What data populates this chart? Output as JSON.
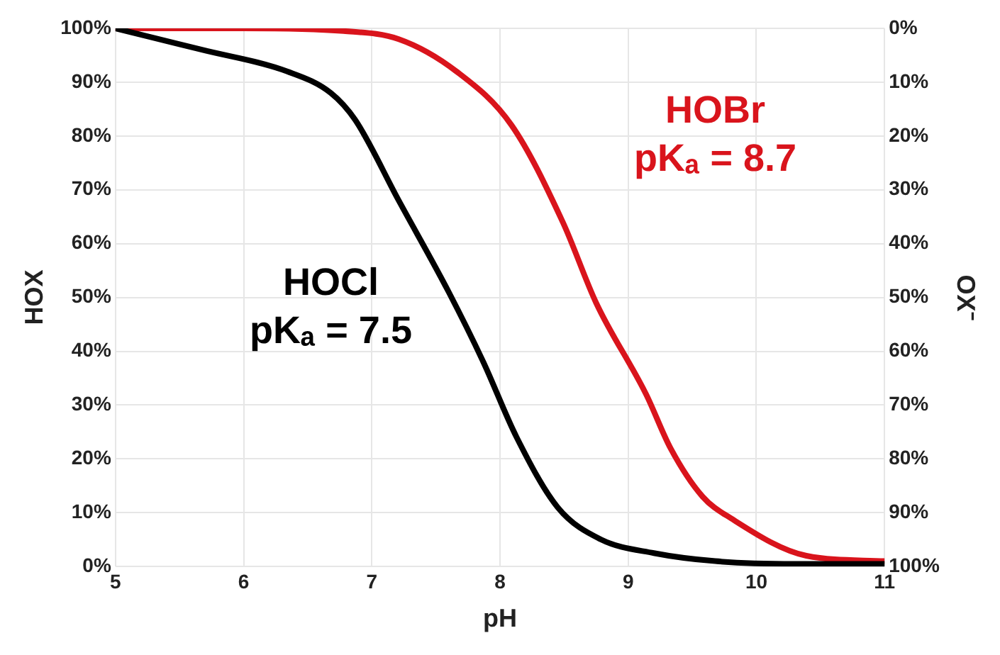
{
  "chart_data": {
    "type": "line",
    "xlabel": "pH",
    "ylabel": "HOX",
    "y2label": "OX⁻",
    "xlim": [
      5,
      11
    ],
    "xticks": [
      5,
      6,
      7,
      8,
      9,
      10,
      11
    ],
    "ylim": [
      0,
      100
    ],
    "yticks": [
      {
        "value": 0,
        "label": "0%"
      },
      {
        "value": 10,
        "label": "10%"
      },
      {
        "value": 20,
        "label": "20%"
      },
      {
        "value": 30,
        "label": "30%"
      },
      {
        "value": 40,
        "label": "40%"
      },
      {
        "value": 50,
        "label": "50%"
      },
      {
        "value": 60,
        "label": "60%"
      },
      {
        "value": 70,
        "label": "70%"
      },
      {
        "value": 80,
        "label": "80%"
      },
      {
        "value": 90,
        "label": "90%"
      },
      {
        "value": 100,
        "label": "100%"
      }
    ],
    "y2lim": [
      100,
      0
    ],
    "y2ticks": [
      {
        "value": 0,
        "label": "0%"
      },
      {
        "value": 10,
        "label": "10%"
      },
      {
        "value": 20,
        "label": "20%"
      },
      {
        "value": 30,
        "label": "30%"
      },
      {
        "value": 40,
        "label": "40%"
      },
      {
        "value": 50,
        "label": "50%"
      },
      {
        "value": 60,
        "label": "60%"
      },
      {
        "value": 70,
        "label": "70%"
      },
      {
        "value": 80,
        "label": "80%"
      },
      {
        "value": 90,
        "label": "90%"
      },
      {
        "value": 100,
        "label": "100%"
      }
    ],
    "series": [
      {
        "color": "#000000",
        "x": [
          5,
          5.68,
          6.34,
          6.68,
          6.87,
          7.21,
          7.6,
          7.87,
          8.13,
          8.45,
          8.79,
          9.2,
          9.68,
          10.3,
          11
        ],
        "values": [
          100,
          96,
          92,
          88,
          83,
          68,
          51,
          38,
          24,
          11,
          5,
          2.5,
          1,
          0.5,
          0.5
        ]
      },
      {
        "color": "#d9141c",
        "x": [
          5,
          6,
          6.78,
          7.21,
          7.66,
          8.09,
          8.49,
          8.75,
          9.14,
          9.33,
          9.58,
          9.8,
          10.39,
          11
        ],
        "values": [
          100,
          100,
          99.5,
          98,
          92,
          82,
          64,
          49,
          32,
          22,
          13,
          9,
          2,
          1
        ]
      }
    ],
    "annotations": [
      "HOCl\npKₐ = 7.5",
      "HOBr\npKₐ = 8.7"
    ],
    "grid": true,
    "legend": false,
    "marker": "none",
    "line_style": "solid"
  }
}
